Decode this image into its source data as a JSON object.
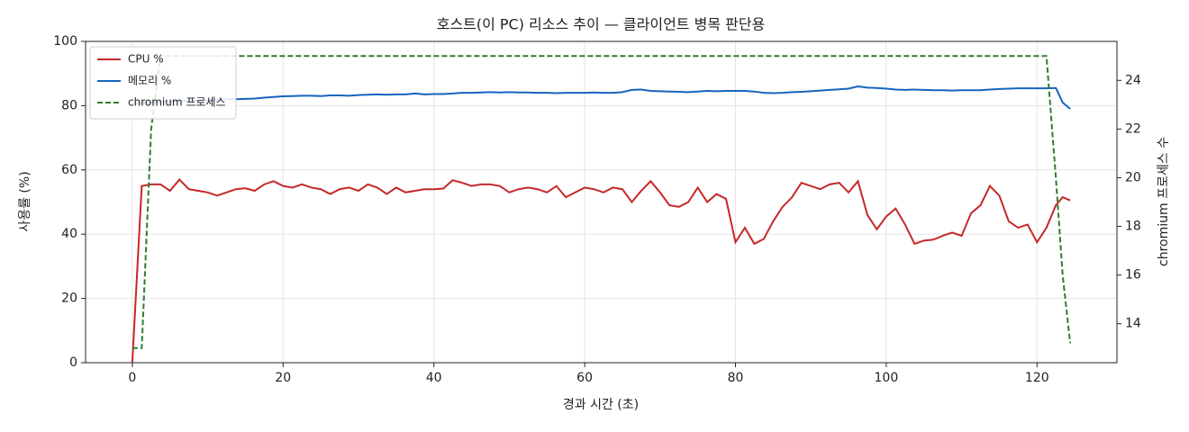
{
  "chart_data": {
    "type": "line",
    "title": "호스트(이 PC) 리소스 추이 — 클라이언트 병목 판단용",
    "x_label": "경과 시간 (초)",
    "y_label": "사용률 (%)",
    "y2_label": "chromium 프로세스 수",
    "x": [
      0,
      1.25,
      2.5,
      3.75,
      5,
      6.25,
      7.5,
      8.75,
      10,
      11.25,
      12.5,
      13.75,
      15,
      16.25,
      17.5,
      18.75,
      20,
      21.25,
      22.5,
      23.75,
      25,
      26.25,
      27.5,
      28.75,
      30,
      31.25,
      32.5,
      33.75,
      35,
      36.25,
      37.5,
      38.75,
      40,
      41.25,
      42.5,
      43.75,
      45,
      46.25,
      47.5,
      48.75,
      50,
      51.25,
      52.5,
      53.75,
      55,
      56.25,
      57.5,
      58.75,
      60,
      61.25,
      62.5,
      63.75,
      65,
      66.25,
      67.5,
      68.75,
      70,
      71.25,
      72.5,
      73.75,
      75,
      76.25,
      77.5,
      78.75,
      80,
      81.25,
      82.5,
      83.75,
      85,
      86.25,
      87.5,
      88.75,
      90,
      91.25,
      92.5,
      93.75,
      95,
      96.25,
      97.5,
      98.75,
      100,
      101.25,
      102.5,
      103.75,
      105,
      106.25,
      107.5,
      108.75,
      110,
      111.25,
      112.5,
      113.75,
      115,
      116.25,
      117.5,
      118.75,
      120,
      121.25,
      122.5,
      123.4,
      124.4
    ],
    "series": [
      {
        "name": "CPU %",
        "color": "#c62828",
        "linestyle": "solid",
        "values": [
          0,
          55,
          55.5,
          55.5,
          53.5,
          57,
          54,
          53.5,
          53,
          52,
          53,
          54,
          54.3,
          53.5,
          55.5,
          56.5,
          55,
          54.5,
          55.5,
          54.5,
          54,
          52.5,
          54,
          54.5,
          53.5,
          55.5,
          54.5,
          52.5,
          54.5,
          53,
          53.5,
          54,
          54,
          54.2,
          56.8,
          56,
          55,
          55.5,
          55.5,
          55,
          53,
          54,
          54.5,
          54,
          53,
          55,
          51.5,
          53,
          54.5,
          54,
          53,
          54.5,
          54,
          50,
          53.5,
          56.5,
          53,
          49,
          48.5,
          50,
          54.5,
          50,
          52.5,
          51,
          37.5,
          42,
          37,
          38.5,
          44,
          48.5,
          51.5,
          56,
          55,
          54,
          55.5,
          56,
          53,
          56.5,
          46,
          41.5,
          45.5,
          48,
          43,
          37,
          38,
          38.3,
          39.5,
          40.5,
          39.5,
          46.5,
          49,
          55,
          52,
          44,
          42,
          43,
          37.5,
          42,
          49,
          51.5,
          50.5
        ]
      },
      {
        "name": "메모리 %",
        "color": "#1565c0",
        "linestyle": "solid",
        "values": [
          80.5,
          80.8,
          81,
          81.2,
          81.3,
          81.4,
          81.5,
          81.6,
          81.7,
          81.8,
          82,
          82,
          82.1,
          82.2,
          82.5,
          82.7,
          82.9,
          83,
          83.1,
          83.1,
          83,
          83.2,
          83.2,
          83.1,
          83.3,
          83.4,
          83.5,
          83.4,
          83.5,
          83.5,
          83.8,
          83.5,
          83.6,
          83.6,
          83.8,
          84,
          84,
          84.1,
          84.2,
          84.1,
          84.2,
          84.1,
          84.1,
          84,
          84,
          83.9,
          84,
          84,
          84,
          84.1,
          84,
          84,
          84.2,
          84.9,
          85,
          84.6,
          84.5,
          84.4,
          84.3,
          84.2,
          84.4,
          84.6,
          84.5,
          84.6,
          84.6,
          84.6,
          84.4,
          84,
          83.9,
          84,
          84.2,
          84.3,
          84.5,
          84.7,
          84.9,
          85.1,
          85.3,
          86,
          85.6,
          85.5,
          85.3,
          85,
          84.9,
          85,
          84.9,
          84.8,
          84.8,
          84.7,
          84.8,
          84.8,
          84.8,
          85,
          85.2,
          85.3,
          85.4,
          85.4,
          85.4,
          85.4,
          85.5,
          81,
          79
        ]
      },
      {
        "name": "chromium 프로세스",
        "color": "#2e7d32",
        "linestyle": "dashed",
        "axis": "y2",
        "values": [
          13,
          13,
          22,
          25,
          25,
          25,
          25,
          25,
          25,
          25,
          25,
          25,
          25,
          25,
          25,
          25,
          25,
          25,
          25,
          25,
          25,
          25,
          25,
          25,
          25,
          25,
          25,
          25,
          25,
          25,
          25,
          25,
          25,
          25,
          25,
          25,
          25,
          25,
          25,
          25,
          25,
          25,
          25,
          25,
          25,
          25,
          25,
          25,
          25,
          25,
          25,
          25,
          25,
          25,
          25,
          25,
          25,
          25,
          25,
          25,
          25,
          25,
          25,
          25,
          25,
          25,
          25,
          25,
          25,
          25,
          25,
          25,
          25,
          25,
          25,
          25,
          25,
          25,
          25,
          25,
          25,
          25,
          25,
          25,
          25,
          25,
          25,
          25,
          25,
          25,
          25,
          25,
          25,
          25,
          25,
          25,
          25,
          25,
          20,
          16,
          13.2
        ]
      }
    ],
    "xlim": [
      -6.2,
      130.6
    ],
    "xticks": [
      0,
      20,
      40,
      60,
      80,
      100,
      120
    ],
    "ylim": [
      0,
      100
    ],
    "yticks": [
      0,
      20,
      40,
      60,
      80,
      100
    ],
    "y2lim": [
      12.4,
      25.6
    ],
    "y2ticks": [
      14,
      16,
      18,
      20,
      22,
      24
    ],
    "grid": true,
    "legend": "upper-left"
  }
}
